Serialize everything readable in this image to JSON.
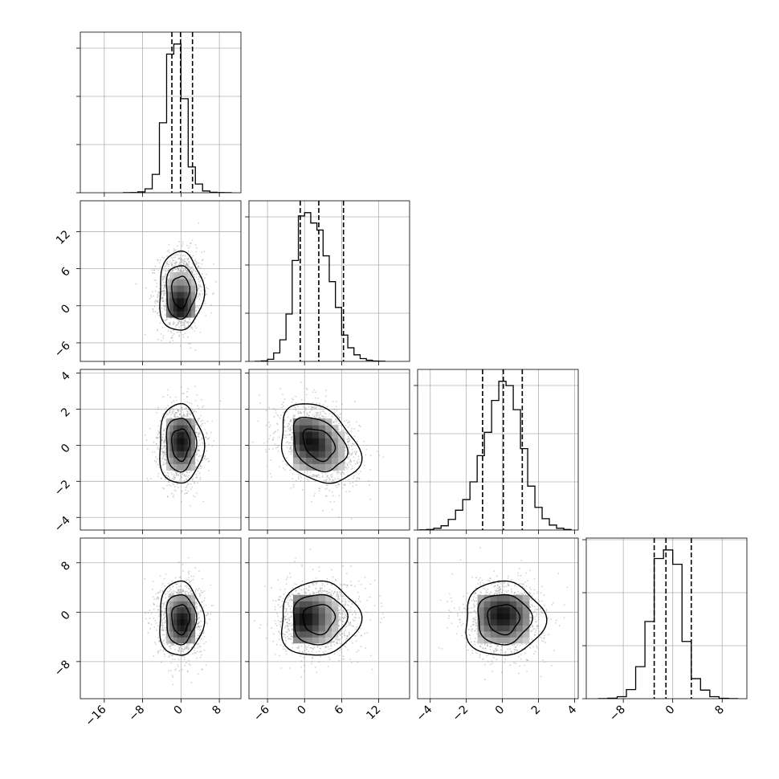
{
  "chart_data": {
    "type": "corner",
    "parameters": 4,
    "grid": true,
    "quantiles_shown": [
      0.16,
      0.5,
      0.84
    ],
    "axes_ranges": [
      [
        -21,
        12.5
      ],
      [
        -9,
        17
      ],
      [
        -4.7,
        4.2
      ],
      [
        -14,
        12
      ]
    ],
    "ticks": [
      {
        "values": [
          -16,
          -8,
          0,
          8
        ],
        "labels": [
          "−16",
          "−8",
          "0",
          "8"
        ]
      },
      {
        "values": [
          -6,
          0,
          6,
          12
        ],
        "labels": [
          "−6",
          "0",
          "6",
          "12"
        ]
      },
      {
        "values": [
          -4,
          -2,
          0,
          2,
          4
        ],
        "labels": [
          "−4",
          "−2",
          "0",
          "2",
          "4"
        ]
      },
      {
        "values": [
          -8,
          0,
          8
        ],
        "labels": [
          "−8",
          "0",
          "8"
        ]
      }
    ],
    "marginals": [
      {
        "param": 0,
        "bin_edges": [
          -12,
          -10.5,
          -9,
          -7.5,
          -6,
          -4.5,
          -3,
          -1.5,
          0,
          1.5,
          3,
          4.5,
          6,
          7.5,
          9,
          10.5
        ],
        "counts": [
          1,
          4,
          20,
          90,
          420,
          1600,
          3170,
          3400,
          2150,
          590,
          200,
          40,
          12,
          3,
          1
        ],
        "quantiles": [
          -1.9,
          -0.1,
          2.4
        ]
      },
      {
        "param": 1,
        "bin_edges": [
          -8,
          -7,
          -6,
          -5,
          -4,
          -3,
          -2,
          -1,
          0,
          1,
          2,
          3,
          4,
          5,
          6,
          7,
          8,
          9,
          10,
          11,
          12,
          13
        ],
        "counts": [
          2,
          10,
          45,
          180,
          460,
          1010,
          2150,
          3100,
          3170,
          2950,
          2800,
          2250,
          1700,
          1150,
          560,
          290,
          140,
          60,
          25,
          8,
          3
        ],
        "quantiles": [
          -0.7,
          2.3,
          6.3
        ]
      },
      {
        "param": 2,
        "bin_edges": [
          -4.6,
          -4.2,
          -3.8,
          -3.4,
          -3.0,
          -2.6,
          -2.2,
          -1.8,
          -1.4,
          -1.0,
          -0.6,
          -0.2,
          0.2,
          0.6,
          1.0,
          1.4,
          1.8,
          2.2,
          2.6,
          3.0,
          3.4,
          3.8
        ],
        "counts": [
          2,
          8,
          25,
          60,
          150,
          280,
          430,
          680,
          1050,
          1380,
          1830,
          2100,
          2040,
          1700,
          1150,
          620,
          320,
          160,
          70,
          25,
          8
        ],
        "quantiles": [
          -1.1,
          0.05,
          1.1
        ]
      },
      {
        "param": 3,
        "bin_edges": [
          -12,
          -10.5,
          -9,
          -7.5,
          -6,
          -4.5,
          -3,
          -1.5,
          0,
          1.5,
          3,
          4.5,
          6,
          7.5,
          9,
          10.5
        ],
        "counts": [
          1,
          8,
          35,
          160,
          560,
          1350,
          2450,
          2600,
          2350,
          1000,
          350,
          150,
          35,
          6,
          1
        ],
        "quantiles": [
          -3.0,
          -1.1,
          3.0
        ]
      }
    ],
    "pairs": [
      {
        "x": 0,
        "y": 1,
        "mean": [
          -0.1,
          2.3
        ],
        "std": [
          2.3,
          3.2
        ],
        "corr": 0.02,
        "density_peak": [
          -0.2,
          0.0
        ],
        "contour_levels": [
          "inner",
          "middle",
          "outer"
        ]
      },
      {
        "x": 0,
        "y": 2,
        "mean": [
          -0.1,
          0.05
        ],
        "std": [
          2.3,
          1.1
        ],
        "corr": 0.0,
        "density_peak": [
          0.1,
          0.2
        ],
        "contour_levels": [
          "inner",
          "middle",
          "outer"
        ]
      },
      {
        "x": 1,
        "y": 2,
        "mean": [
          2.3,
          0.05
        ],
        "std": [
          3.2,
          1.1
        ],
        "corr": -0.3,
        "density_peak": [
          1.0,
          0.2
        ],
        "contour_levels": [
          "inner",
          "middle",
          "outer"
        ]
      },
      {
        "x": 0,
        "y": 3,
        "mean": [
          -0.1,
          -1.1
        ],
        "std": [
          2.3,
          3.0
        ],
        "corr": 0.0,
        "density_peak": [
          0.3,
          -1.5
        ],
        "contour_levels": [
          "inner",
          "middle",
          "outer"
        ]
      },
      {
        "x": 1,
        "y": 3,
        "mean": [
          2.3,
          -1.1
        ],
        "std": [
          3.2,
          3.0
        ],
        "corr": 0.05,
        "density_peak": [
          0.0,
          -1.0
        ],
        "contour_levels": [
          "inner",
          "middle",
          "outer"
        ]
      },
      {
        "x": 2,
        "y": 3,
        "mean": [
          0.05,
          -1.1
        ],
        "std": [
          1.1,
          3.0
        ],
        "corr": 0.0,
        "density_peak": [
          0.0,
          -0.5
        ],
        "contour_levels": [
          "inner",
          "middle",
          "outer"
        ]
      }
    ]
  }
}
